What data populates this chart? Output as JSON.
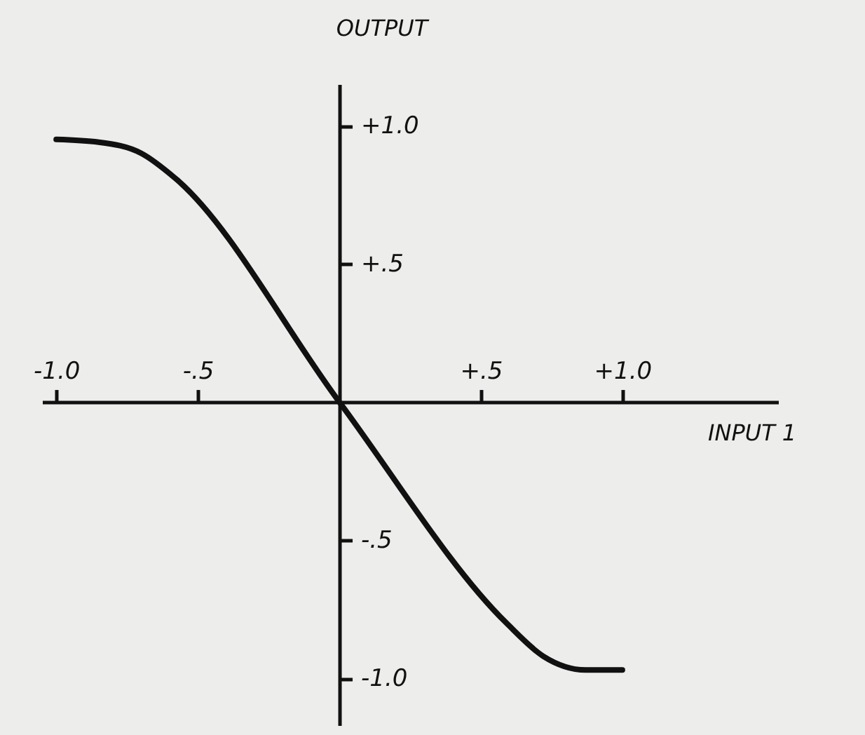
{
  "chart_data": {
    "type": "line",
    "xlabel": "INPUT 1",
    "ylabel": "OUTPUT",
    "x": [
      -1.0,
      -0.85,
      -0.7,
      -0.58,
      0,
      0.59,
      0.72,
      0.87,
      1.0
    ],
    "values": [
      0.95,
      0.94,
      0.9,
      0.81,
      0,
      -0.8,
      -0.92,
      -0.97,
      -0.97
    ],
    "color": "#111111",
    "line_style": "solid",
    "xlim": [
      -1.05,
      1.55
    ],
    "ylim": [
      -1.17,
      1.15
    ],
    "xticks": [
      {
        "value": -1.0,
        "label": "-1.0"
      },
      {
        "value": -0.5,
        "label": "-.5"
      },
      {
        "value": 0.5,
        "label": "+.5"
      },
      {
        "value": 1.0,
        "label": "+1.0"
      }
    ],
    "yticks": [
      {
        "value": 1.0,
        "label": "+1.0"
      },
      {
        "value": 0.5,
        "label": "+.5"
      },
      {
        "value": -0.5,
        "label": "-.5"
      },
      {
        "value": -1.0,
        "label": "-1.0"
      }
    ]
  }
}
